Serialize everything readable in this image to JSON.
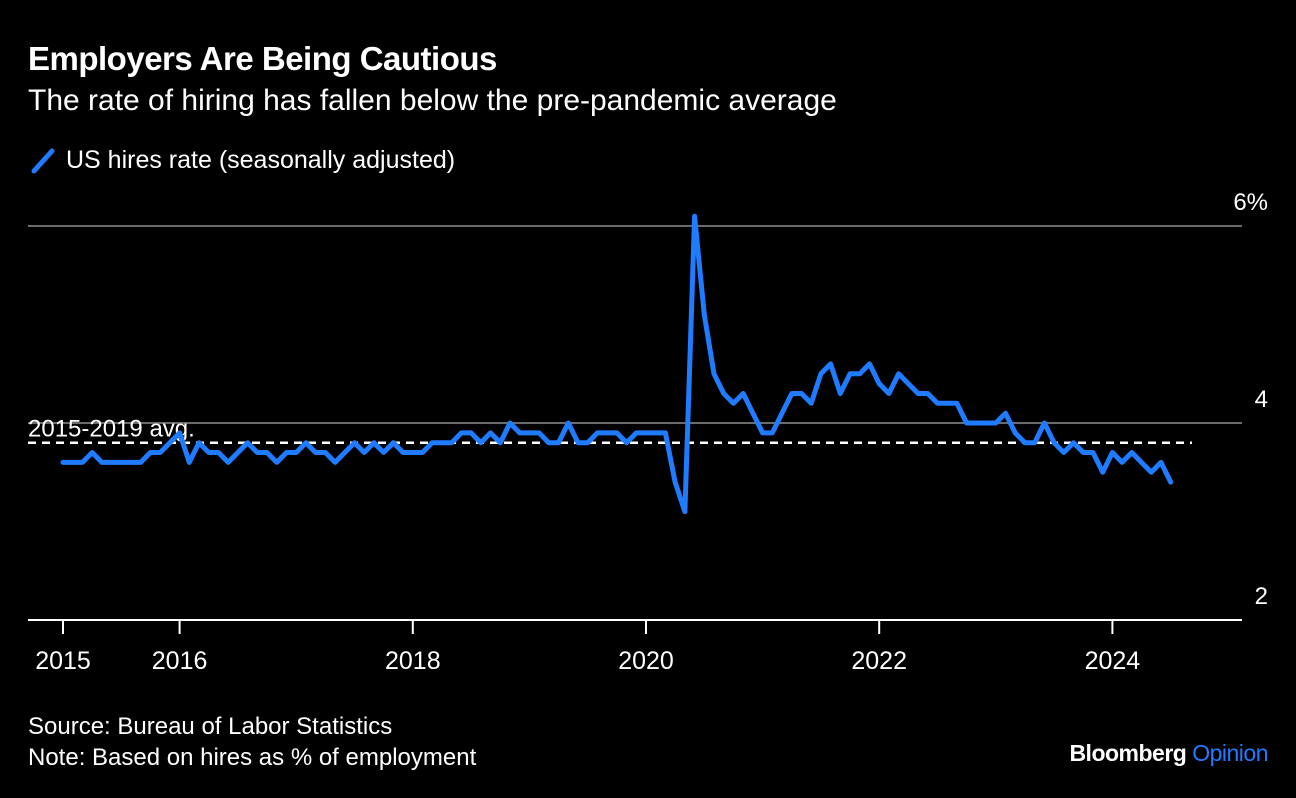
{
  "chart_data": {
    "type": "line",
    "title": "Employers Are Being Cautious",
    "subtitle": "The rate of hiring has fallen below the pre-pandemic average",
    "legend": "US hires rate (seasonally adjusted)",
    "series_color": "#1f7bff",
    "ylim": [
      2,
      6
    ],
    "y_ticks": [
      6,
      4,
      2
    ],
    "y_tick_labels": [
      "6%",
      "4",
      "2"
    ],
    "x_ticks": [
      2015,
      2016,
      2018,
      2020,
      2022,
      2024
    ],
    "x_tick_labels": [
      "2015",
      "2016",
      "2018",
      "2020",
      "2022",
      "2024"
    ],
    "average": {
      "label": "2015-2019 avg.",
      "value": 3.8
    },
    "series": [
      {
        "name": "US hires rate (seasonally adjusted)",
        "start": "2015-01",
        "values": [
          3.6,
          3.6,
          3.6,
          3.7,
          3.6,
          3.6,
          3.6,
          3.6,
          3.6,
          3.7,
          3.7,
          3.8,
          3.9,
          3.6,
          3.8,
          3.7,
          3.7,
          3.6,
          3.7,
          3.8,
          3.7,
          3.7,
          3.6,
          3.7,
          3.7,
          3.8,
          3.7,
          3.7,
          3.6,
          3.7,
          3.8,
          3.7,
          3.8,
          3.7,
          3.8,
          3.7,
          3.7,
          3.7,
          3.8,
          3.8,
          3.8,
          3.9,
          3.9,
          3.8,
          3.9,
          3.8,
          4.0,
          3.9,
          3.9,
          3.9,
          3.8,
          3.8,
          4.0,
          3.8,
          3.8,
          3.9,
          3.9,
          3.9,
          3.8,
          3.9,
          3.9,
          3.9,
          3.9,
          3.4,
          3.1,
          6.1,
          5.1,
          4.5,
          4.3,
          4.2,
          4.3,
          4.1,
          3.9,
          3.9,
          4.1,
          4.3,
          4.3,
          4.2,
          4.5,
          4.6,
          4.3,
          4.5,
          4.5,
          4.6,
          4.4,
          4.3,
          4.5,
          4.4,
          4.3,
          4.3,
          4.2,
          4.2,
          4.2,
          4.0,
          4.0,
          4.0,
          4.0,
          4.1,
          3.9,
          3.8,
          3.8,
          4.0,
          3.8,
          3.7,
          3.8,
          3.7,
          3.7,
          3.5,
          3.7,
          3.6,
          3.7,
          3.6,
          3.5,
          3.6,
          3.4
        ]
      }
    ]
  },
  "footer": {
    "source": "Source: Bureau of Labor Statistics",
    "note": "Note: Based on hires as % of employment",
    "brand": "Bloomberg",
    "brand_accent": "Opinion"
  }
}
